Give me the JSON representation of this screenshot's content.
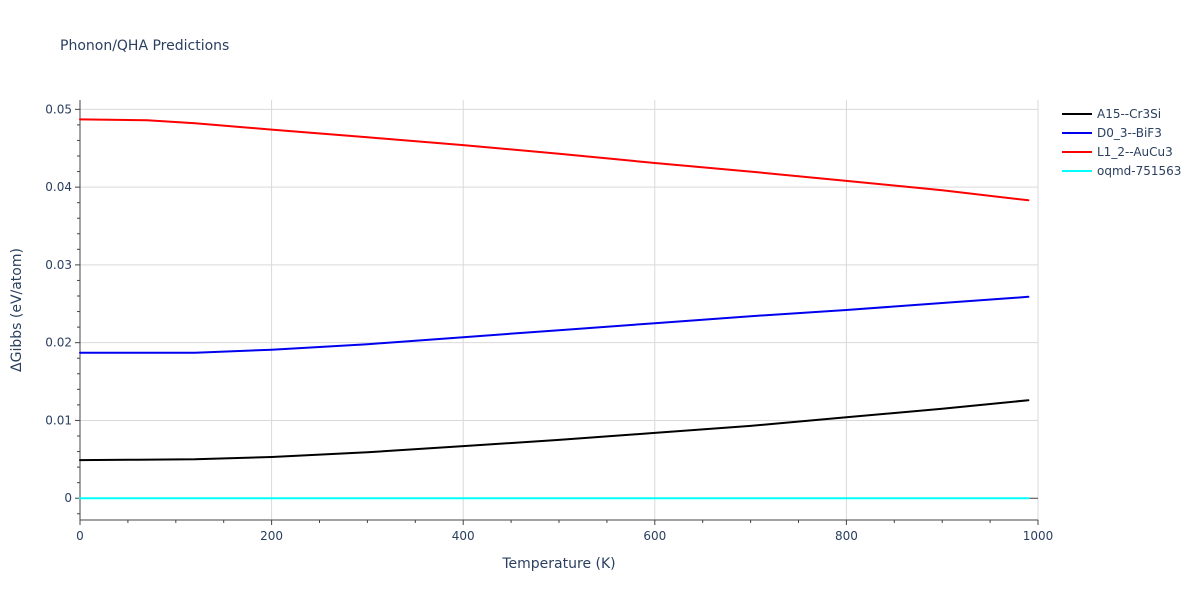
{
  "chart_data": {
    "type": "line",
    "title": "Phonon/QHA Predictions",
    "xlabel": "Temperature (K)",
    "ylabel": "ΔGibbs (eV/atom)",
    "xlim": [
      0,
      1000
    ],
    "ylim": [
      -0.0028,
      0.0512
    ],
    "x_ticks": [
      0,
      200,
      400,
      600,
      800,
      1000
    ],
    "x_tick_labels": [
      "0",
      "200",
      "400",
      "600",
      "800",
      "1000"
    ],
    "y_ticks": [
      0,
      0.01,
      0.02,
      0.03,
      0.04,
      0.05
    ],
    "y_tick_labels": [
      "0",
      "0.01",
      "0.02",
      "0.03",
      "0.04",
      "0.05"
    ],
    "x_minor_step": 50,
    "y_minor_step": 0.002,
    "grid": true,
    "legend_position": "top-right",
    "series": [
      {
        "name": "A15--Cr3Si",
        "color": "#000000",
        "x": [
          0,
          60,
          120,
          200,
          300,
          400,
          500,
          600,
          700,
          800,
          900,
          990
        ],
        "values": [
          0.0049,
          0.00495,
          0.005,
          0.0053,
          0.0059,
          0.0067,
          0.0075,
          0.0084,
          0.0093,
          0.0104,
          0.0115,
          0.0126
        ]
      },
      {
        "name": "D0_3--BiF3",
        "color": "#0000ee",
        "x": [
          0,
          60,
          120,
          200,
          300,
          400,
          500,
          600,
          700,
          800,
          900,
          990
        ],
        "values": [
          0.0187,
          0.0187,
          0.0187,
          0.0191,
          0.0198,
          0.0207,
          0.0216,
          0.0225,
          0.0234,
          0.0242,
          0.0251,
          0.0259
        ]
      },
      {
        "name": "L1_2--AuCu3",
        "color": "#ff0000",
        "x": [
          0,
          70,
          120,
          200,
          300,
          400,
          500,
          600,
          700,
          800,
          900,
          990
        ],
        "values": [
          0.0487,
          0.0486,
          0.0482,
          0.0474,
          0.0464,
          0.0454,
          0.0443,
          0.0431,
          0.042,
          0.0408,
          0.0396,
          0.0383
        ]
      },
      {
        "name": "oqmd-751563",
        "color": "#00ffff",
        "x": [
          0,
          990
        ],
        "values": [
          0,
          0
        ]
      }
    ]
  }
}
